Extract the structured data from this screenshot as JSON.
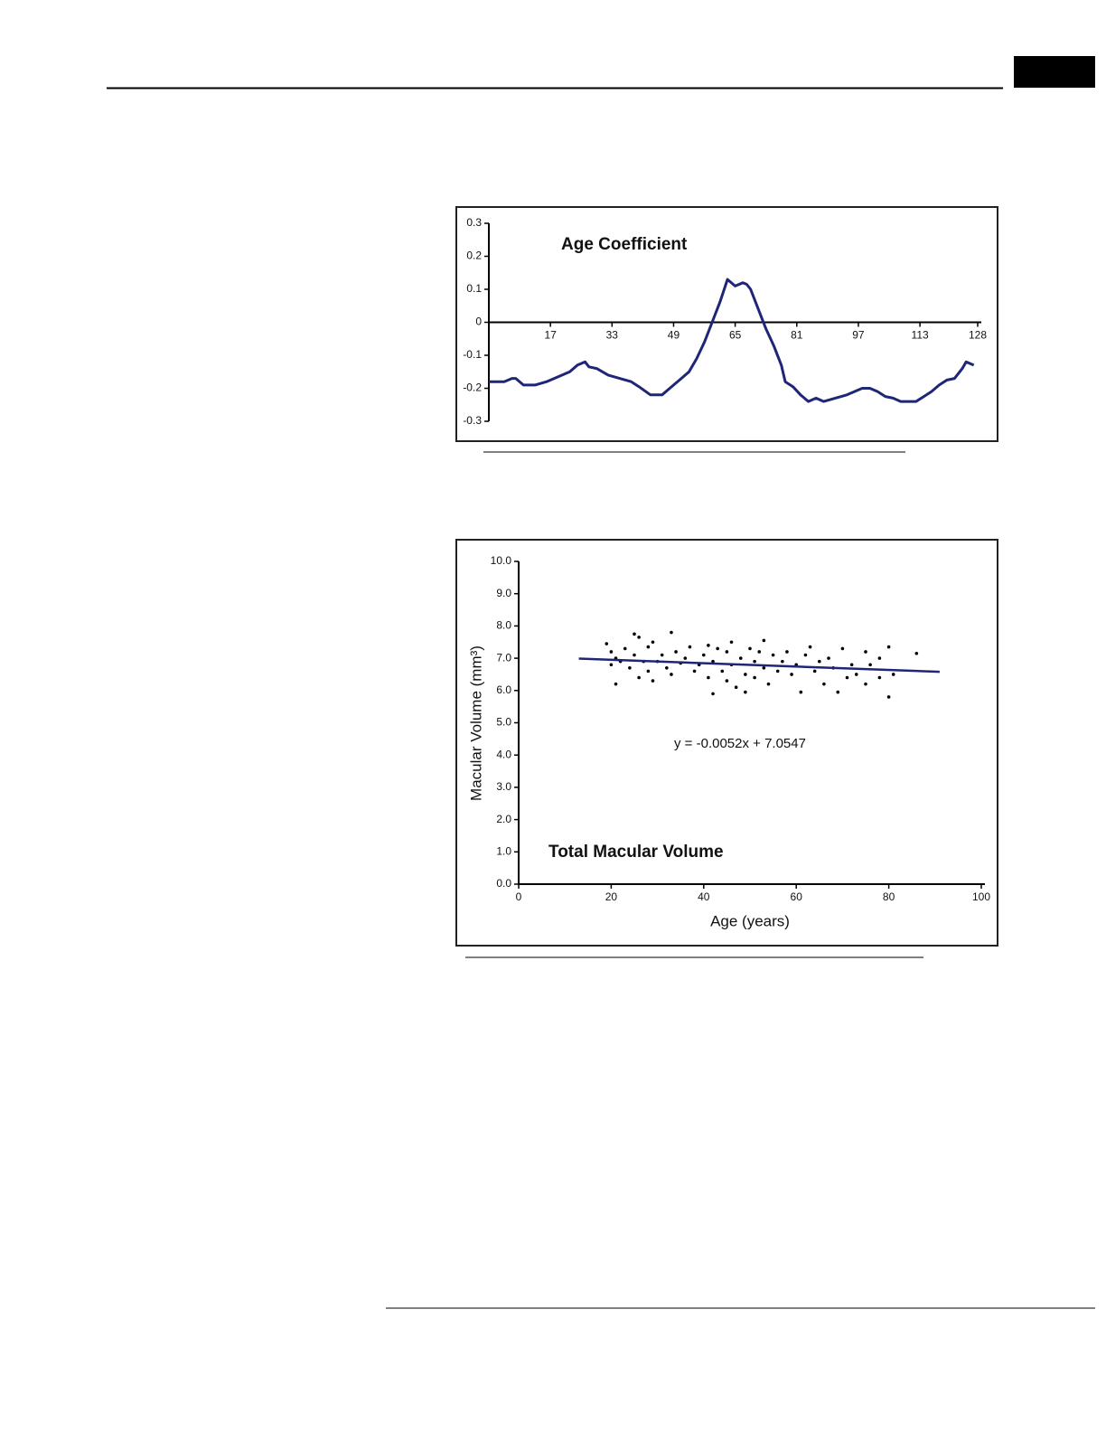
{
  "chart_data": [
    {
      "type": "line",
      "title": "Age Coefficient",
      "color": "#1f2677",
      "xlim": [
        1,
        128
      ],
      "xticks": [
        17,
        33,
        49,
        65,
        81,
        97,
        113,
        128
      ],
      "ylim": [
        -0.3,
        0.3
      ],
      "yticks": [
        0.3,
        0.2,
        0.1,
        0,
        -0.1,
        -0.2,
        -0.3
      ],
      "x": [
        1,
        5,
        7,
        8,
        10,
        13,
        16,
        19,
        22,
        24,
        26,
        27,
        29,
        32,
        35,
        38,
        40,
        43,
        46,
        48,
        51,
        53,
        55,
        57,
        59,
        61,
        63,
        65,
        67,
        68,
        69,
        71,
        73,
        75,
        77,
        78,
        80,
        82,
        84,
        86,
        88,
        91,
        94,
        96,
        98,
        100,
        102,
        104,
        106,
        108,
        110,
        112,
        114,
        116,
        118,
        120,
        122,
        124,
        125,
        126,
        127
      ],
      "values": [
        -0.18,
        -0.18,
        -0.17,
        -0.17,
        -0.19,
        -0.19,
        -0.18,
        -0.165,
        -0.15,
        -0.13,
        -0.12,
        -0.135,
        -0.14,
        -0.16,
        -0.17,
        -0.18,
        -0.195,
        -0.22,
        -0.22,
        -0.2,
        -0.17,
        -0.15,
        -0.11,
        -0.06,
        0,
        0.06,
        0.13,
        0.11,
        0.12,
        0.115,
        0.1,
        0.04,
        -0.02,
        -0.07,
        -0.13,
        -0.18,
        -0.195,
        -0.22,
        -0.24,
        -0.23,
        -0.24,
        -0.23,
        -0.22,
        -0.21,
        -0.2,
        -0.2,
        -0.21,
        -0.225,
        -0.23,
        -0.24,
        -0.24,
        -0.24,
        -0.225,
        -0.21,
        -0.19,
        -0.175,
        -0.17,
        -0.14,
        -0.12,
        -0.125,
        -0.13
      ]
    },
    {
      "type": "scatter",
      "title": "Total Macular Volume",
      "xlabel": "Age (years)",
      "ylabel": "Macular Volume (mm³)",
      "annotation": "y = -0.0052x + 7.0547",
      "color": "#000000",
      "trend_color": "#1f2677",
      "xlim": [
        0,
        100
      ],
      "xticks": [
        0,
        20,
        40,
        60,
        80,
        100
      ],
      "ylim": [
        0,
        10
      ],
      "yticks": [
        {
          "value": 0,
          "label": "0.0"
        },
        {
          "value": 1,
          "label": "1.0"
        },
        {
          "value": 2,
          "label": "2.0"
        },
        {
          "value": 3,
          "label": "3.0"
        },
        {
          "value": 4,
          "label": "4.0"
        },
        {
          "value": 5,
          "label": "5.0"
        },
        {
          "value": 6,
          "label": "6.0"
        },
        {
          "value": 7,
          "label": "7.0"
        },
        {
          "value": 8,
          "label": "8.0"
        },
        {
          "value": 9,
          "label": "9.0"
        },
        {
          "value": 10,
          "label": "10.0"
        }
      ],
      "x": [
        19,
        20,
        20,
        21,
        21,
        22,
        23,
        24,
        25,
        25,
        26,
        26,
        27,
        28,
        28,
        29,
        29,
        30,
        31,
        32,
        33,
        33,
        34,
        35,
        36,
        37,
        38,
        39,
        40,
        41,
        41,
        42,
        42,
        43,
        44,
        45,
        45,
        46,
        46,
        47,
        48,
        49,
        49,
        50,
        51,
        51,
        52,
        53,
        53,
        54,
        55,
        56,
        57,
        58,
        59,
        60,
        61,
        62,
        63,
        64,
        65,
        66,
        67,
        68,
        69,
        70,
        71,
        72,
        73,
        75,
        75,
        76,
        78,
        78,
        80,
        80,
        81,
        86
      ],
      "values": [
        7.45,
        7.2,
        6.8,
        6.2,
        7.0,
        6.9,
        7.3,
        6.7,
        7.75,
        7.1,
        7.65,
        6.4,
        6.9,
        7.35,
        6.6,
        7.5,
        6.3,
        6.9,
        7.1,
        6.7,
        7.8,
        6.5,
        7.2,
        6.85,
        7.0,
        7.35,
        6.6,
        6.8,
        7.1,
        6.4,
        7.4,
        5.9,
        6.9,
        7.3,
        6.6,
        7.2,
        6.3,
        7.5,
        6.8,
        6.1,
        7.0,
        6.5,
        5.95,
        7.3,
        6.9,
        6.4,
        7.2,
        6.7,
        7.55,
        6.2,
        7.1,
        6.6,
        6.9,
        7.2,
        6.5,
        6.8,
        5.95,
        7.1,
        7.35,
        6.6,
        6.9,
        6.2,
        7.0,
        6.7,
        5.95,
        7.3,
        6.4,
        6.8,
        6.5,
        6.2,
        7.2,
        6.8,
        7.0,
        6.4,
        7.35,
        5.8,
        6.5,
        7.15
      ],
      "trendline": {
        "x": [
          13,
          91
        ],
        "values": [
          6.99,
          6.58
        ]
      }
    }
  ]
}
